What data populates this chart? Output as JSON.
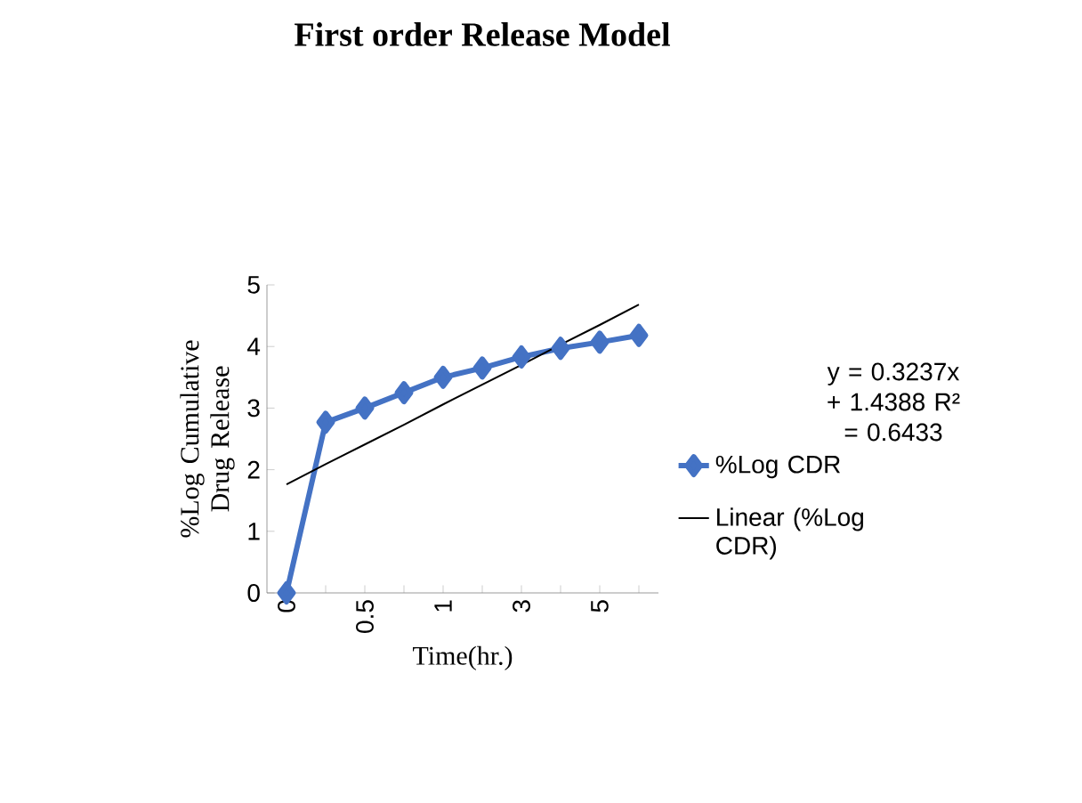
{
  "chart_data": {
    "type": "line",
    "title": "First order Release Model",
    "xlabel": "Time(hr.)",
    "ylabel": "%Log Cumulative Drug Release",
    "categories": [
      "0",
      null,
      "0.5",
      null,
      "1",
      null,
      "3",
      null,
      "5",
      null
    ],
    "series": [
      {
        "name": "%Log CDR",
        "color": "#4472c4",
        "marker": "diamond",
        "values": [
          0,
          2.77,
          3.0,
          3.25,
          3.5,
          3.65,
          3.83,
          3.97,
          4.07,
          4.18
        ]
      },
      {
        "name": "Linear (%Log CDR)",
        "color": "#000000",
        "marker": "none",
        "values": [
          1.76,
          2.09,
          2.41,
          2.73,
          3.06,
          3.38,
          3.7,
          4.03,
          4.35,
          4.68
        ]
      }
    ],
    "ylim": [
      0,
      5
    ],
    "yticks": [
      0,
      1,
      2,
      3,
      4,
      5
    ],
    "grid": false,
    "legend": "right",
    "annotations": [
      "y = 0.3237x + 1.4388 R² = 0.6433"
    ]
  }
}
